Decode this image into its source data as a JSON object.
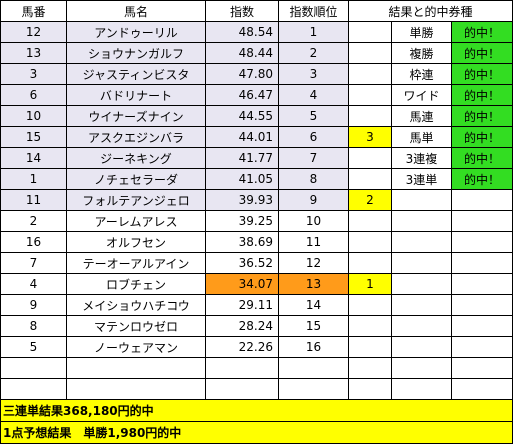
{
  "headers": [
    "馬番",
    "馬名",
    "指数",
    "指数順位",
    "結果と的中券種"
  ],
  "rows": [
    {
      "no": "12",
      "name": "アンドゥーリル",
      "index": "48.54",
      "rank": "1",
      "result": "",
      "bet": "単勝",
      "hit": "的中！"
    },
    {
      "no": "13",
      "name": "ショウナンガルフ",
      "index": "48.44",
      "rank": "2",
      "result": "",
      "bet": "複勝",
      "hit": "的中！"
    },
    {
      "no": "3",
      "name": "ジャスティンビスタ",
      "index": "47.80",
      "rank": "3",
      "result": "",
      "bet": "枠連",
      "hit": "的中！"
    },
    {
      "no": "6",
      "name": "バドリナート",
      "index": "46.47",
      "rank": "4",
      "result": "",
      "bet": "ワイド",
      "hit": "的中！"
    },
    {
      "no": "10",
      "name": "ウイナーズナイン",
      "index": "44.55",
      "rank": "5",
      "result": "",
      "bet": "馬連",
      "hit": "的中！"
    },
    {
      "no": "15",
      "name": "アスクエジンバラ",
      "index": "44.01",
      "rank": "6",
      "result": "3",
      "bet": "馬単",
      "hit": "的中！"
    },
    {
      "no": "14",
      "name": "ジーネキング",
      "index": "41.77",
      "rank": "7",
      "result": "",
      "bet": "3連複",
      "hit": "的中！"
    },
    {
      "no": "1",
      "name": "ノチェセラーダ",
      "index": "41.05",
      "rank": "8",
      "result": "",
      "bet": "3連単",
      "hit": "的中！"
    },
    {
      "no": "11",
      "name": "フォルテアンジェロ",
      "index": "39.93",
      "rank": "9",
      "result": "2",
      "bet": "",
      "hit": ""
    },
    {
      "no": "2",
      "name": "アーレムアレス",
      "index": "39.25",
      "rank": "10",
      "result": "",
      "bet": "",
      "hit": ""
    },
    {
      "no": "16",
      "name": "オルフセン",
      "index": "38.69",
      "rank": "11",
      "result": "",
      "bet": "",
      "hit": ""
    },
    {
      "no": "7",
      "name": "テーオーアルアイン",
      "index": "36.52",
      "rank": "12",
      "result": "",
      "bet": "",
      "hit": ""
    },
    {
      "no": "4",
      "name": "ロブチェン",
      "index": "34.07",
      "rank": "13",
      "result": "1",
      "bet": "",
      "hit": ""
    },
    {
      "no": "9",
      "name": "メイショウハチコウ",
      "index": "29.11",
      "rank": "14",
      "result": "",
      "bet": "",
      "hit": ""
    },
    {
      "no": "8",
      "name": "マテンロウゼロ",
      "index": "28.24",
      "rank": "15",
      "result": "",
      "bet": "",
      "hit": ""
    },
    {
      "no": "5",
      "name": "ノーウェアマン",
      "index": "22.26",
      "rank": "16",
      "result": "",
      "bet": "",
      "hit": ""
    },
    {
      "no": "",
      "name": "",
      "index": "",
      "rank": "",
      "result": "",
      "bet": "",
      "hit": ""
    },
    {
      "no": "",
      "name": "",
      "index": "",
      "rank": "",
      "result": "",
      "bet": "",
      "hit": ""
    }
  ],
  "footer": {
    "line1": "三連単結果368,180円的中",
    "line2": "1点予想結果　単勝1,980円的中"
  },
  "colors": {
    "lavender": "#e8e6f2",
    "orange": "#ff9b1a",
    "yellow": "#ffff00",
    "green": "#33dd22"
  }
}
